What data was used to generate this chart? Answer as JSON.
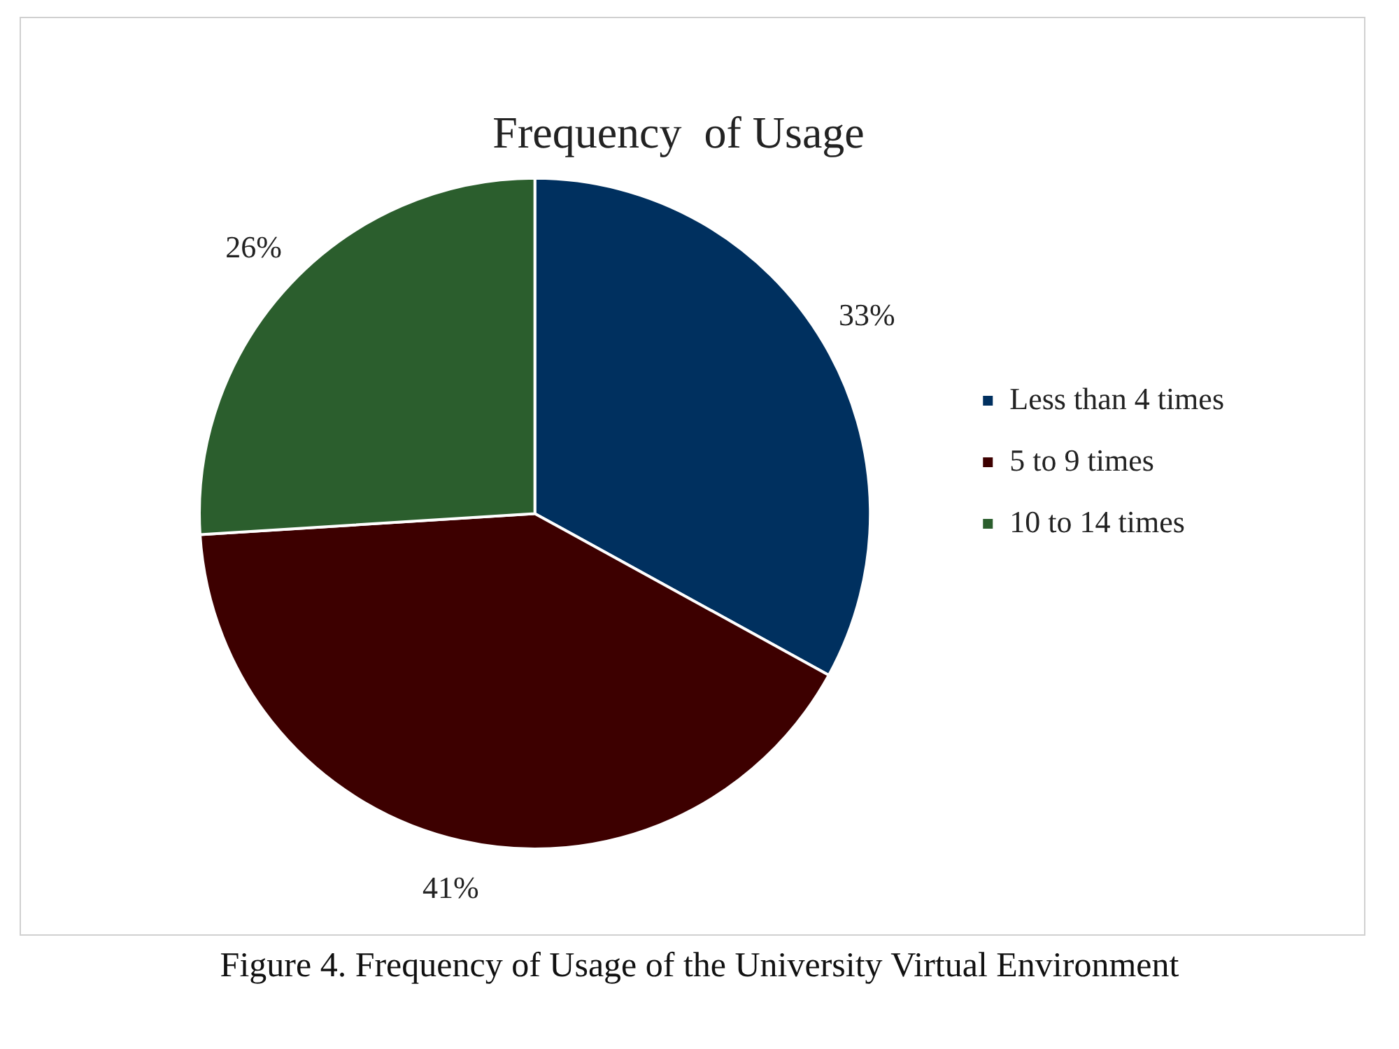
{
  "chart_data": {
    "type": "pie",
    "title": "Frequency  of Usage",
    "categories": [
      "Less than 4 times",
      "5 to 9 times",
      "10 to 14 times"
    ],
    "values": [
      33,
      41,
      26
    ],
    "colors": [
      "#00305f",
      "#3d0000",
      "#2b5e2d"
    ],
    "value_labels": [
      "33%",
      "41%",
      "26%"
    ],
    "legend": "right",
    "annotations": [
      "Figure 4. Frequency of Usage of the University Virtual Environment"
    ]
  }
}
